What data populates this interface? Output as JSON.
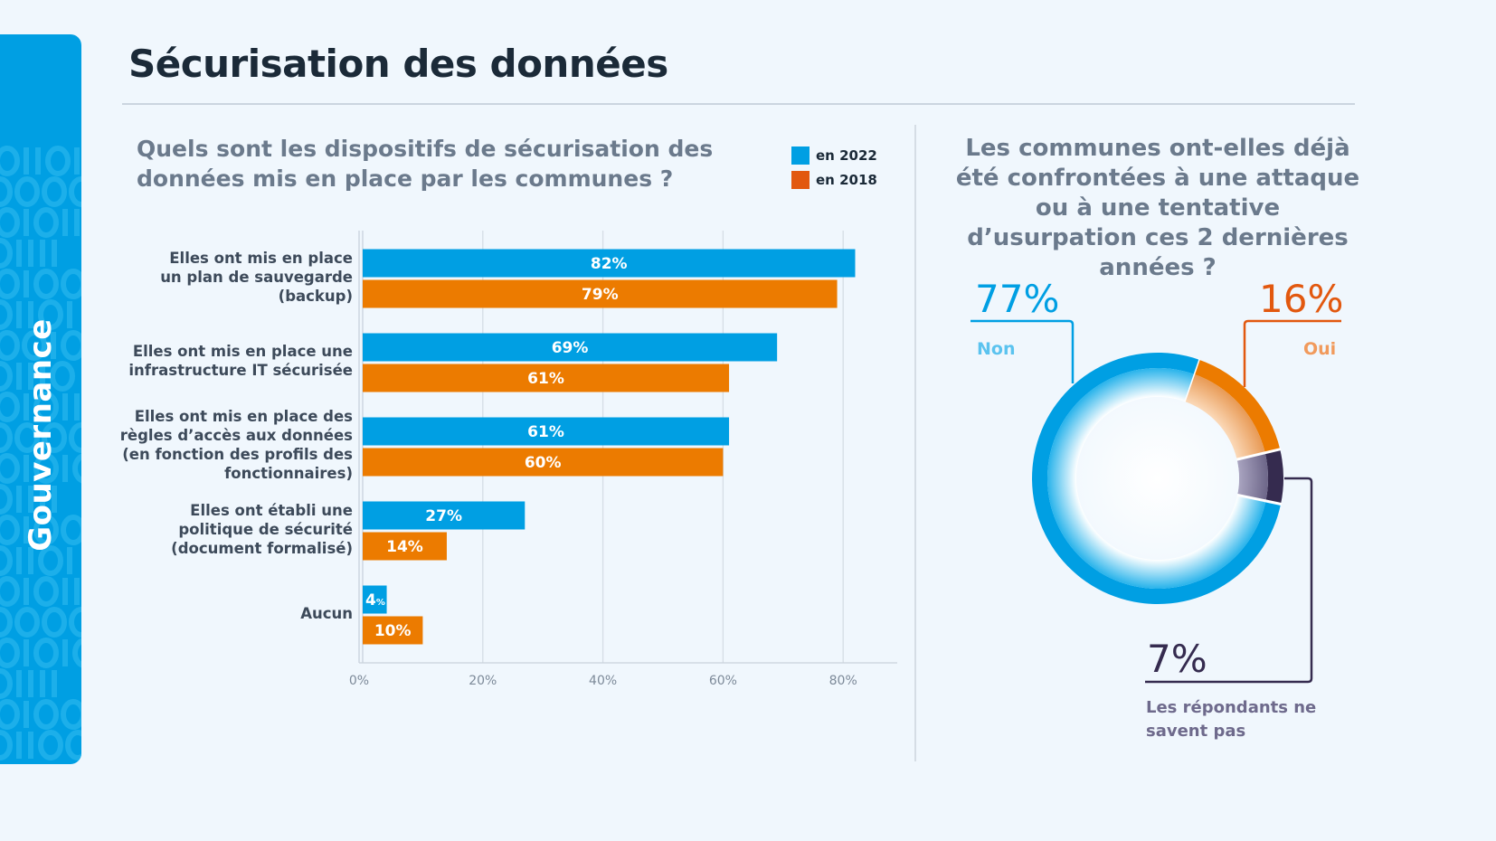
{
  "sidebar": {
    "label": "Gouvernance",
    "pattern": "binary-digits-pattern"
  },
  "page": {
    "title": "Sécurisation des données"
  },
  "colors": {
    "accent_blue": "#009FE3",
    "accent_orange": "#EC7B00",
    "legend_orange": "#E2580F",
    "dark_purple": "#352B4F",
    "title": "#1B2A38",
    "question": "#6B7A8C"
  },
  "left": {
    "question": "Quels sont les dispositifs de sécurisation des données mis en place par les communes ?",
    "legend": [
      {
        "label": "en 2022",
        "color": "#009FE3"
      },
      {
        "label": "en 2018",
        "color": "#E2580F"
      }
    ]
  },
  "right": {
    "question": "Les communes ont-elles déjà été confrontées à une attaque ou à une tentative d’usurpation ces 2 dernières années ?",
    "answers": [
      {
        "key": "non",
        "pct": "77%",
        "label": "Non"
      },
      {
        "key": "oui",
        "pct": "16%",
        "label": "Oui"
      },
      {
        "key": "nsp",
        "pct": "7%",
        "label": "Les répondants ne savent pas"
      }
    ]
  },
  "chart_data": [
    {
      "type": "bar",
      "orientation": "horizontal",
      "title": "Quels sont les dispositifs de sécurisation des données mis en place par les communes ?",
      "categories": [
        [
          "Elles ont mis en place",
          "un plan de sauvegarde",
          "(backup)"
        ],
        [
          "Elles ont mis en place une",
          "infrastructure IT sécurisée"
        ],
        [
          "Elles ont mis en place des",
          "règles d’accès aux données",
          "(en fonction des profils des",
          "fonctionnaires)"
        ],
        [
          "Elles ont établi une",
          "politique de sécurité",
          "(document formalisé)"
        ],
        [
          "Aucun"
        ]
      ],
      "series": [
        {
          "name": "en 2022",
          "color": "#009FE3",
          "values": [
            82,
            69,
            61,
            27,
            4
          ],
          "labels": [
            "82%",
            "69%",
            "61%",
            "27%",
            "4%"
          ]
        },
        {
          "name": "en 2018",
          "color": "#EC7B00",
          "values": [
            79,
            61,
            60,
            14,
            10
          ],
          "labels": [
            "79%",
            "61%",
            "60%",
            "14%",
            "10%"
          ]
        }
      ],
      "xlim": [
        0,
        90
      ],
      "xticks": [
        0,
        20,
        40,
        60,
        80
      ],
      "xtick_labels": [
        "0%",
        "20%",
        "40%",
        "60%",
        "80%"
      ],
      "grid": true,
      "legend": "top-right",
      "xlabel": "",
      "ylabel": ""
    },
    {
      "type": "pie",
      "donut": true,
      "title": "Les communes ont-elles déjà été confrontées à une attaque ou à une tentative d’usurpation ces 2 dernières années ?",
      "categories": [
        "Non",
        "Oui",
        "Les répondants ne savent pas"
      ],
      "values": [
        77,
        16,
        7
      ],
      "labels": [
        "77%",
        "16%",
        "7%"
      ],
      "colors": [
        "#009FE3",
        "#EC7B00",
        "#352B4F"
      ]
    }
  ]
}
